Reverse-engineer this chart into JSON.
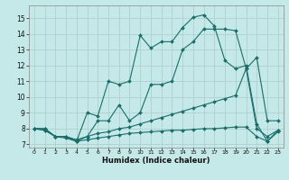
{
  "xlabel": "Humidex (Indice chaleur)",
  "bg_color": "#c5e8e8",
  "grid_color": "#afd0d0",
  "line_color": "#1a6e6a",
  "xlim": [
    -0.5,
    23.5
  ],
  "ylim": [
    6.8,
    15.8
  ],
  "xticks": [
    0,
    1,
    2,
    3,
    4,
    5,
    6,
    7,
    8,
    9,
    10,
    11,
    12,
    13,
    14,
    15,
    16,
    17,
    18,
    19,
    20,
    21,
    22,
    23
  ],
  "yticks": [
    7,
    8,
    9,
    10,
    11,
    12,
    13,
    14,
    15
  ],
  "line1_x": [
    0,
    1,
    2,
    3,
    4,
    5,
    6,
    7,
    8,
    9,
    10,
    11,
    12,
    13,
    14,
    15,
    16,
    17,
    18,
    19,
    20,
    21,
    22,
    23
  ],
  "line1_y": [
    8.0,
    8.0,
    7.5,
    7.5,
    7.2,
    9.0,
    8.8,
    11.0,
    10.8,
    11.0,
    13.9,
    13.1,
    13.5,
    13.5,
    14.4,
    15.05,
    15.2,
    14.5,
    12.3,
    11.8,
    12.0,
    8.3,
    7.2,
    7.9
  ],
  "line2_x": [
    0,
    1,
    2,
    3,
    4,
    5,
    6,
    7,
    8,
    9,
    10,
    11,
    12,
    13,
    14,
    15,
    16,
    17,
    18,
    19,
    20,
    21,
    22,
    23
  ],
  "line2_y": [
    8.0,
    8.0,
    7.5,
    7.5,
    7.2,
    7.5,
    8.5,
    8.5,
    9.5,
    8.5,
    9.0,
    10.8,
    10.8,
    11.0,
    13.0,
    13.5,
    14.3,
    14.3,
    14.3,
    14.2,
    11.8,
    12.5,
    8.5,
    8.5
  ],
  "line3_x": [
    0,
    1,
    2,
    3,
    4,
    5,
    6,
    7,
    8,
    9,
    10,
    11,
    12,
    13,
    14,
    15,
    16,
    17,
    18,
    19,
    20,
    21,
    22,
    23
  ],
  "line3_y": [
    8.0,
    7.9,
    7.5,
    7.5,
    7.3,
    7.5,
    7.7,
    7.8,
    8.0,
    8.1,
    8.3,
    8.5,
    8.7,
    8.9,
    9.1,
    9.3,
    9.5,
    9.7,
    9.9,
    10.1,
    11.8,
    8.0,
    7.5,
    7.9
  ],
  "line4_x": [
    0,
    1,
    2,
    3,
    4,
    5,
    6,
    7,
    8,
    9,
    10,
    11,
    12,
    13,
    14,
    15,
    16,
    17,
    18,
    19,
    20,
    21,
    22,
    23
  ],
  "line4_y": [
    8.0,
    7.9,
    7.5,
    7.4,
    7.2,
    7.3,
    7.4,
    7.5,
    7.6,
    7.7,
    7.75,
    7.8,
    7.85,
    7.9,
    7.9,
    7.95,
    8.0,
    8.0,
    8.05,
    8.1,
    8.1,
    7.5,
    7.2,
    7.8
  ]
}
